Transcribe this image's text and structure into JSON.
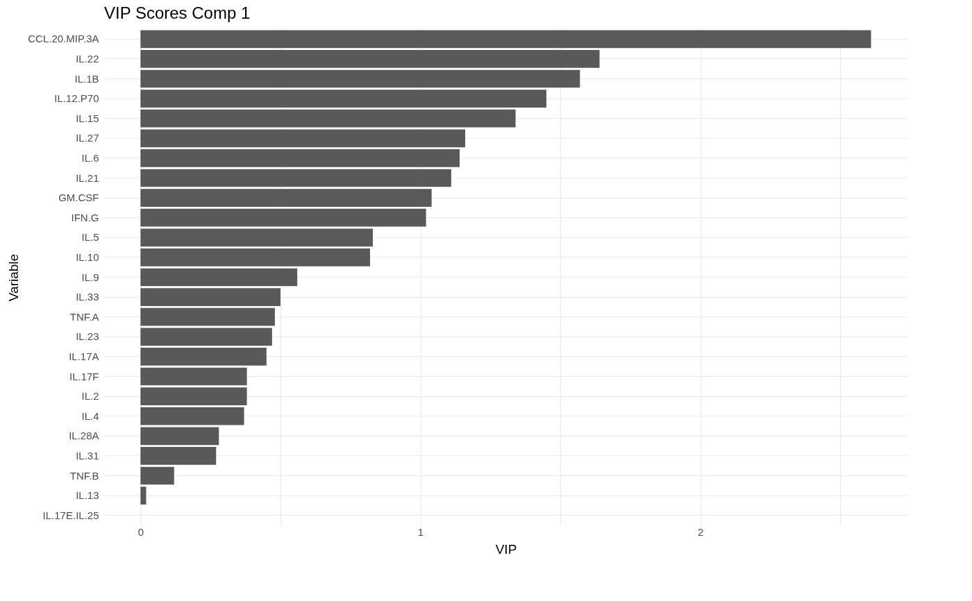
{
  "chart_data": {
    "type": "bar",
    "orientation": "horizontal",
    "title": "VIP Scores Comp 1",
    "xlabel": "VIP",
    "ylabel": "Variable",
    "categories": [
      "CCL.20.MIP.3A",
      "IL.22",
      "IL.1B",
      "IL.12.P70",
      "IL.15",
      "IL.27",
      "IL.6",
      "IL.21",
      "GM.CSF",
      "IFN.G",
      "IL.5",
      "IL.10",
      "IL.9",
      "IL.33",
      "TNF.A",
      "IL.23",
      "IL.17A",
      "IL.17F",
      "IL.2",
      "IL.4",
      "IL.28A",
      "IL.31",
      "TNF.B",
      "IL.13",
      "IL.17E.IL.25"
    ],
    "values": [
      2.61,
      1.64,
      1.57,
      1.45,
      1.34,
      1.16,
      1.14,
      1.11,
      1.04,
      1.02,
      0.83,
      0.82,
      0.56,
      0.5,
      0.48,
      0.47,
      0.45,
      0.38,
      0.38,
      0.37,
      0.28,
      0.27,
      0.12,
      0.02,
      0
    ],
    "color": "#595959",
    "xlim": [
      -0.13,
      2.74
    ],
    "xticks": [
      0,
      {
        "value": 0.5,
        "label": null
      },
      1,
      {
        "value": 1.5,
        "label": null
      },
      2,
      {
        "value": 2.5,
        "label": null
      }
    ],
    "grid": true
  }
}
